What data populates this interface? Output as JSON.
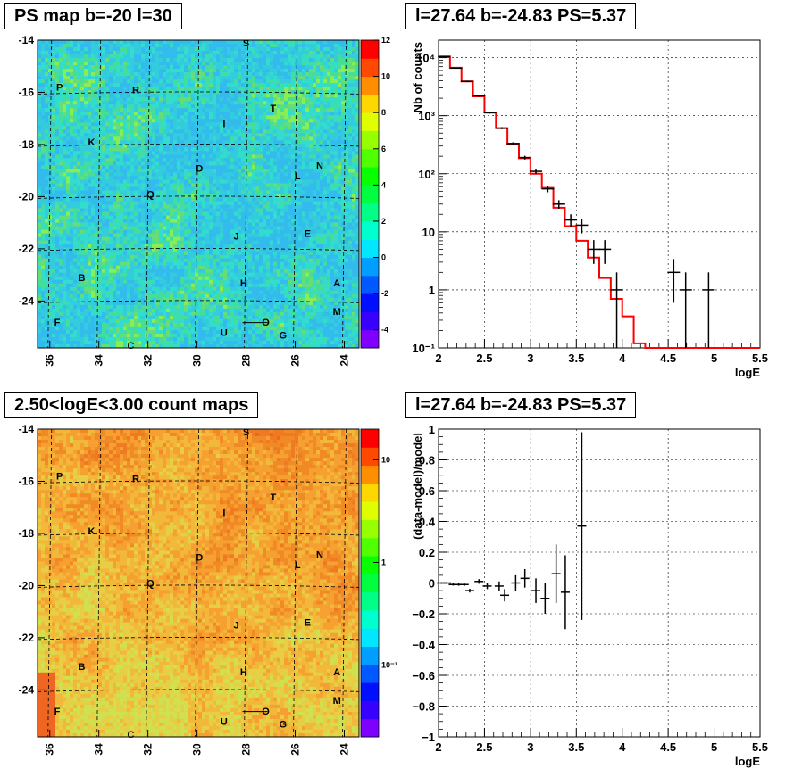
{
  "panels": {
    "ps_map": {
      "title": "PS map b=-20 l=30",
      "scale": {
        "min": -5,
        "max": 12,
        "ticks": [
          12,
          10,
          8,
          6,
          4,
          2,
          0,
          -2,
          -4
        ],
        "tick_labels": [
          "12",
          "10",
          "8",
          "6",
          "4",
          "2",
          "0",
          "-2",
          "-4"
        ]
      },
      "field_seed": 1,
      "palette": "green"
    },
    "spectrum": {
      "title": "l=27.64 b=-24.83 PS=5.37",
      "ylabel": "Nb of counts",
      "xlabel": "logE"
    },
    "count_map": {
      "title": "2.50<logE<3.00 count maps",
      "scale": {
        "ticks_log": [
          10,
          1,
          0.1
        ],
        "tick_labels": [
          "10",
          "1",
          "10⁻¹"
        ]
      },
      "field_seed": 7,
      "palette": "orange"
    },
    "residual": {
      "title": "l=27.64 b=-24.83 PS=5.37",
      "ylabel": "(data-model)/model",
      "xlabel": "logE"
    }
  },
  "sky_axes": {
    "x_ticks": [
      36,
      34,
      32,
      30,
      28,
      26,
      24
    ],
    "x_tick_labels": [
      "36",
      "34",
      "32",
      "30",
      "28",
      "26",
      "24"
    ],
    "y_ticks": [
      -14,
      -16,
      -18,
      -20,
      -22,
      -24
    ],
    "y_tick_labels": [
      "-14",
      "-16",
      "-18",
      "-20",
      "-22",
      "-24"
    ],
    "xlim": [
      36.5,
      23.4
    ],
    "ylim": [
      -25.8,
      -14
    ]
  },
  "sources": [
    {
      "label": "S",
      "l": 28.0,
      "b": -14.1
    },
    {
      "label": "P",
      "l": 35.6,
      "b": -15.8
    },
    {
      "label": "R",
      "l": 32.5,
      "b": -15.9
    },
    {
      "label": "T",
      "l": 26.9,
      "b": -16.6
    },
    {
      "label": "I",
      "l": 28.9,
      "b": -17.2
    },
    {
      "label": "K",
      "l": 34.3,
      "b": -17.9
    },
    {
      "label": "D",
      "l": 29.9,
      "b": -18.9
    },
    {
      "label": "N",
      "l": 25.0,
      "b": -18.8
    },
    {
      "label": "L",
      "l": 25.9,
      "b": -19.2
    },
    {
      "label": "Q",
      "l": 31.9,
      "b": -19.9
    },
    {
      "label": "J",
      "l": 28.4,
      "b": -21.5
    },
    {
      "label": "E",
      "l": 25.5,
      "b": -21.4
    },
    {
      "label": "B",
      "l": 34.7,
      "b": -23.1
    },
    {
      "label": "H",
      "l": 28.1,
      "b": -23.3
    },
    {
      "label": "A",
      "l": 24.3,
      "b": -23.3
    },
    {
      "label": "M",
      "l": 24.3,
      "b": -24.4
    },
    {
      "label": "F",
      "l": 35.7,
      "b": -24.8
    },
    {
      "label": "U",
      "l": 28.9,
      "b": -25.2
    },
    {
      "label": "O",
      "l": 27.2,
      "b": -24.8
    },
    {
      "label": "G",
      "l": 26.5,
      "b": -25.3
    },
    {
      "label": "C",
      "l": 32.7,
      "b": -25.7
    }
  ],
  "marker": {
    "l": 27.64,
    "b": -24.83
  },
  "chart_data": [
    {
      "type": "heatmap",
      "title": "PS map b=-20 l=30",
      "xlim": [
        36.5,
        23.4
      ],
      "ylim": [
        -25.8,
        -14
      ],
      "zlim": [
        -5,
        12
      ],
      "typical_value": [
        0,
        3
      ]
    },
    {
      "type": "line",
      "title": "l=27.64 b=-24.83 PS=5.37",
      "xlabel": "logE",
      "ylabel": "Nb of counts",
      "yscale": "log",
      "xlim": [
        2,
        5.5
      ],
      "ylim": [
        0.1,
        20000
      ],
      "x_ticks": [
        2,
        2.5,
        3,
        3.5,
        4,
        4.5,
        5,
        5.5
      ],
      "x_tick_labels": [
        "2",
        "2.5",
        "3",
        "3.5",
        "4",
        "4.5",
        "5",
        "5.5"
      ],
      "y_ticks": [
        0.1,
        1,
        10,
        100,
        1000,
        10000
      ],
      "y_tick_labels": [
        "10⁻¹",
        "1",
        "10",
        "10²",
        "10³",
        "10⁴"
      ],
      "grid": true,
      "model": {
        "edges": [
          2.0,
          2.125,
          2.25,
          2.375,
          2.5,
          2.625,
          2.75,
          2.875,
          3.0,
          3.125,
          3.25,
          3.375,
          3.5,
          3.625,
          3.75,
          3.875,
          4.0,
          4.125,
          4.25,
          4.375,
          4.5,
          4.625,
          4.75,
          4.875,
          5.0,
          5.125,
          5.25,
          5.375,
          5.5
        ],
        "values": [
          10500,
          6700,
          3900,
          2150,
          1130,
          610,
          330,
          185,
          100,
          57,
          26,
          12.5,
          7,
          3.6,
          1.6,
          0.7,
          0.35,
          0.12,
          0.1,
          0.1,
          0.1,
          0.1,
          0.1,
          0.1,
          0.1,
          0.1,
          0.1,
          0.1
        ],
        "color": "#ff0000"
      },
      "data_points": [
        {
          "x": 2.06,
          "y": 10400,
          "ylo": 10200,
          "yhi": 10600
        },
        {
          "x": 2.19,
          "y": 6600,
          "ylo": 6450,
          "yhi": 6750
        },
        {
          "x": 2.31,
          "y": 3900,
          "ylo": 3780,
          "yhi": 4020
        },
        {
          "x": 2.44,
          "y": 2200,
          "ylo": 2120,
          "yhi": 2280
        },
        {
          "x": 2.56,
          "y": 1130,
          "ylo": 1090,
          "yhi": 1170
        },
        {
          "x": 2.69,
          "y": 610,
          "ylo": 585,
          "yhi": 635
        },
        {
          "x": 2.81,
          "y": 330,
          "ylo": 312,
          "yhi": 348
        },
        {
          "x": 2.94,
          "y": 190,
          "ylo": 176,
          "yhi": 204
        },
        {
          "x": 3.06,
          "y": 110,
          "ylo": 99,
          "yhi": 121
        },
        {
          "x": 3.19,
          "y": 55,
          "ylo": 48,
          "yhi": 62
        },
        {
          "x": 3.31,
          "y": 30,
          "ylo": 25,
          "yhi": 35
        },
        {
          "x": 3.44,
          "y": 16,
          "ylo": 12,
          "yhi": 20
        },
        {
          "x": 3.56,
          "y": 13,
          "ylo": 9.4,
          "yhi": 16.6
        },
        {
          "x": 3.69,
          "y": 5,
          "ylo": 2.8,
          "yhi": 7.2
        },
        {
          "x": 3.81,
          "y": 5,
          "ylo": 2.8,
          "yhi": 7.2
        },
        {
          "x": 3.94,
          "y": 1,
          "ylo": 0.1,
          "yhi": 2
        },
        {
          "x": 4.56,
          "y": 2,
          "ylo": 0.6,
          "yhi": 3.4
        },
        {
          "x": 4.69,
          "y": 1,
          "ylo": 0.1,
          "yhi": 2
        },
        {
          "x": 4.94,
          "y": 1,
          "ylo": 0.1,
          "yhi": 2
        }
      ]
    },
    {
      "type": "heatmap",
      "title": "2.50<logE<3.00 count maps",
      "xlim": [
        36.5,
        23.4
      ],
      "ylim": [
        -25.8,
        -14
      ],
      "zscale": "log",
      "z_ticks": [
        10,
        1,
        0.1
      ]
    },
    {
      "type": "scatter",
      "title": "l=27.64 b=-24.83 PS=5.37",
      "xlabel": "logE",
      "ylabel": "(data-model)/model",
      "xlim": [
        2,
        5.5
      ],
      "ylim": [
        -1,
        1
      ],
      "x_ticks": [
        2,
        2.5,
        3,
        3.5,
        4,
        4.5,
        5,
        5.5
      ],
      "x_tick_labels": [
        "2",
        "2.5",
        "3",
        "3.5",
        "4",
        "4.5",
        "5",
        "5.5"
      ],
      "y_ticks": [
        -1,
        -0.8,
        -0.6,
        -0.4,
        -0.2,
        0,
        0.2,
        0.4,
        0.6,
        0.8,
        1
      ],
      "y_tick_labels": [
        "−1",
        "−0.8",
        "−0.6",
        "−0.4",
        "−0.2",
        "0",
        "0.2",
        "0.4",
        "0.6",
        "0.8",
        "1"
      ],
      "grid": true,
      "points": [
        {
          "x": 2.03,
          "y": 0.0,
          "err": 0.005
        },
        {
          "x": 2.09,
          "y": 0.0,
          "err": 0.006
        },
        {
          "x": 2.16,
          "y": -0.01,
          "err": 0.007
        },
        {
          "x": 2.22,
          "y": -0.01,
          "err": 0.008
        },
        {
          "x": 2.28,
          "y": -0.01,
          "err": 0.01
        },
        {
          "x": 2.34,
          "y": -0.05,
          "err": 0.012
        },
        {
          "x": 2.44,
          "y": 0.01,
          "err": 0.015
        },
        {
          "x": 2.53,
          "y": -0.02,
          "err": 0.02
        },
        {
          "x": 2.66,
          "y": -0.02,
          "err": 0.03
        },
        {
          "x": 2.72,
          "y": -0.08,
          "err": 0.04
        },
        {
          "x": 2.84,
          "y": 0.0,
          "err": 0.05
        },
        {
          "x": 2.94,
          "y": 0.03,
          "err": 0.06
        },
        {
          "x": 3.06,
          "y": -0.05,
          "err": 0.08
        },
        {
          "x": 3.16,
          "y": -0.1,
          "err": 0.1
        },
        {
          "x": 3.28,
          "y": 0.06,
          "err": 0.19
        },
        {
          "x": 3.38,
          "y": -0.06,
          "err": 0.24
        },
        {
          "x": 3.56,
          "y": 0.37,
          "err": 0.61
        }
      ]
    }
  ],
  "colors": {
    "frame": "#000000",
    "model_line": "#ff0000",
    "map_background_green": "#33ccdd",
    "map_background_orange": "#f08a24"
  }
}
